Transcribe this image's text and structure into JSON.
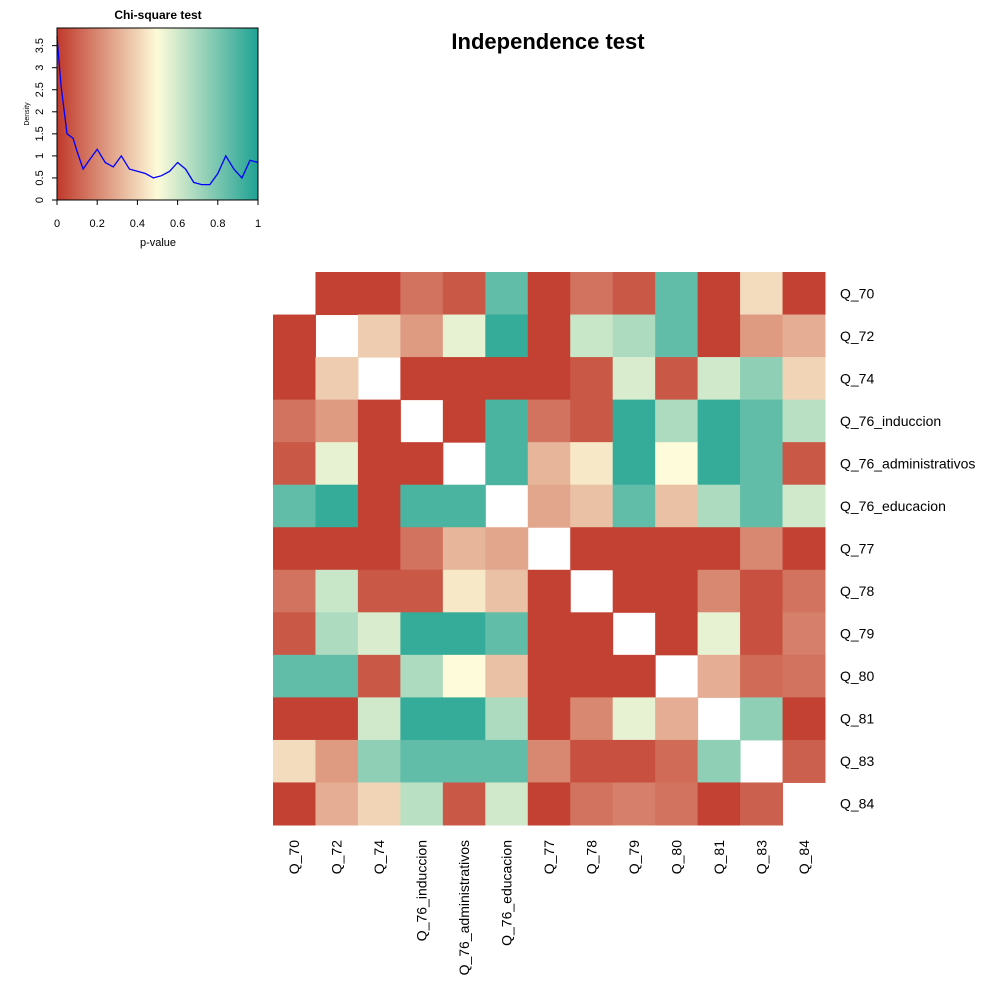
{
  "chart_data": [
    {
      "type": "line",
      "title": "Chi-square test",
      "xlabel": "p-value",
      "ylabel": "Density",
      "color": "#0000ff",
      "x": [
        0,
        0.02,
        0.05,
        0.08,
        0.1,
        0.13,
        0.16,
        0.2,
        0.24,
        0.28,
        0.32,
        0.36,
        0.4,
        0.44,
        0.48,
        0.52,
        0.56,
        0.6,
        0.64,
        0.68,
        0.72,
        0.76,
        0.8,
        0.84,
        0.88,
        0.92,
        0.96,
        1.0
      ],
      "values": [
        3.7,
        2.6,
        1.5,
        1.4,
        1.1,
        0.7,
        0.9,
        1.15,
        0.85,
        0.75,
        1.0,
        0.7,
        0.65,
        0.6,
        0.5,
        0.55,
        0.65,
        0.85,
        0.7,
        0.4,
        0.35,
        0.35,
        0.6,
        1.0,
        0.7,
        0.5,
        0.9,
        0.85
      ],
      "xlim": [
        0,
        1
      ],
      "xticks": [
        0,
        0.2,
        0.4,
        0.6,
        0.8,
        1
      ],
      "ylim": [
        0,
        3.9
      ],
      "yticks": [
        0,
        0.5,
        1,
        1.5,
        2,
        2.5,
        3,
        3.5
      ]
    },
    {
      "type": "heatmap",
      "title": "Independence test",
      "rows": [
        "Q_70",
        "Q_72",
        "Q_74",
        "Q_76_induccion",
        "Q_76_administrativos",
        "Q_76_educacion",
        "Q_77",
        "Q_78",
        "Q_79",
        "Q_80",
        "Q_81",
        "Q_83",
        "Q_84"
      ],
      "columns": [
        "Q_70",
        "Q_72",
        "Q_74",
        "Q_76_induccion",
        "Q_76_administrativos",
        "Q_76_educacion",
        "Q_77",
        "Q_78",
        "Q_79",
        "Q_80",
        "Q_81",
        "Q_83",
        "Q_84"
      ],
      "zlim": [
        0,
        1
      ],
      "colorscale": [
        "#c0392b",
        "#fdfbd9",
        "#1fa293"
      ],
      "values": [
        [
          null,
          0.02,
          0.02,
          0.15,
          0.08,
          0.85,
          0.02,
          0.15,
          0.08,
          0.85,
          0.02,
          0.42,
          0.02
        ],
        [
          0.02,
          null,
          0.38,
          0.25,
          0.55,
          0.95,
          0.02,
          0.62,
          0.68,
          0.85,
          0.02,
          0.25,
          0.3
        ],
        [
          0.02,
          0.38,
          null,
          0.02,
          0.02,
          0.02,
          0.02,
          0.08,
          0.58,
          0.08,
          0.6,
          0.75,
          0.4
        ],
        [
          0.15,
          0.25,
          0.02,
          null,
          0.02,
          0.9,
          0.15,
          0.08,
          0.95,
          0.68,
          0.95,
          0.85,
          0.65
        ],
        [
          0.08,
          0.55,
          0.02,
          0.02,
          null,
          0.9,
          0.32,
          0.45,
          0.95,
          0.5,
          0.95,
          0.85,
          0.08
        ],
        [
          0.85,
          0.95,
          0.02,
          0.9,
          0.9,
          null,
          0.28,
          0.35,
          0.85,
          0.35,
          0.68,
          0.85,
          0.6
        ],
        [
          0.02,
          0.02,
          0.02,
          0.15,
          0.32,
          0.28,
          null,
          0.02,
          0.02,
          0.02,
          0.02,
          0.2,
          0.02
        ],
        [
          0.15,
          0.62,
          0.08,
          0.08,
          0.45,
          0.35,
          0.02,
          null,
          0.02,
          0.02,
          0.2,
          0.06,
          0.15
        ],
        [
          0.08,
          0.68,
          0.58,
          0.95,
          0.95,
          0.85,
          0.02,
          0.02,
          null,
          0.02,
          0.55,
          0.06,
          0.18
        ],
        [
          0.85,
          0.85,
          0.08,
          0.68,
          0.5,
          0.35,
          0.02,
          0.02,
          0.02,
          null,
          0.3,
          0.13,
          0.15
        ],
        [
          0.02,
          0.02,
          0.6,
          0.95,
          0.95,
          0.68,
          0.02,
          0.2,
          0.55,
          0.3,
          null,
          0.75,
          0.02
        ],
        [
          0.42,
          0.25,
          0.75,
          0.85,
          0.85,
          0.85,
          0.2,
          0.06,
          0.06,
          0.13,
          0.75,
          null,
          0.1
        ],
        [
          0.02,
          0.3,
          0.4,
          0.65,
          0.08,
          0.6,
          0.02,
          0.15,
          0.18,
          0.15,
          0.02,
          0.1,
          null
        ]
      ]
    }
  ]
}
